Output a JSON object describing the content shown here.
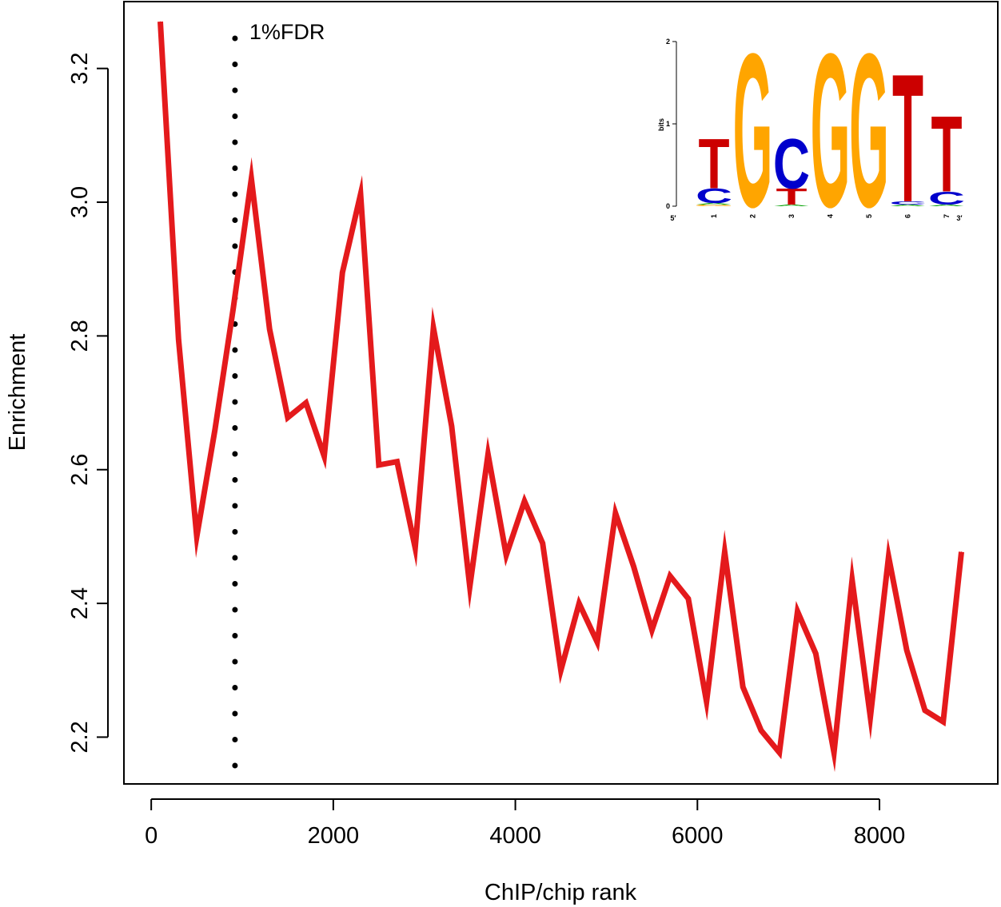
{
  "chart_data": {
    "type": "line",
    "xlabel": "ChIP/chip rank",
    "ylabel": "Enrichment",
    "xlim": [
      -300,
      9300
    ],
    "ylim": [
      2.13,
      3.3
    ],
    "xticks": [
      0,
      2000,
      4000,
      6000,
      8000
    ],
    "yticks": [
      2.2,
      2.4,
      2.6,
      2.8,
      3.0,
      3.2
    ],
    "xtick_labels": [
      "0",
      "2000",
      "4000",
      "6000",
      "8000"
    ],
    "ytick_labels": [
      "2.2",
      "2.4",
      "2.6",
      "2.8",
      "3.0",
      "3.2"
    ],
    "grid": false,
    "series": [
      {
        "color": "#e41a1c",
        "x": [
          100,
          300,
          500,
          700,
          900,
          1100,
          1300,
          1500,
          1700,
          1900,
          2100,
          2300,
          2500,
          2700,
          2900,
          3100,
          3300,
          3500,
          3700,
          3900,
          4100,
          4300,
          4500,
          4700,
          4900,
          5100,
          5300,
          5500,
          5700,
          5900,
          6100,
          6300,
          6500,
          6700,
          6900,
          7100,
          7300,
          7500,
          7700,
          7900,
          8100,
          8300,
          8500,
          8700,
          8900
        ],
        "y": [
          3.27,
          2.795,
          2.5,
          2.66,
          2.84,
          3.035,
          2.81,
          2.678,
          2.7,
          2.62,
          2.895,
          3.012,
          2.607,
          2.612,
          2.483,
          2.812,
          2.665,
          2.425,
          2.623,
          2.472,
          2.553,
          2.49,
          2.3,
          2.4,
          2.342,
          2.535,
          2.455,
          2.36,
          2.441,
          2.407,
          2.253,
          2.477,
          2.275,
          2.21,
          2.177,
          2.388,
          2.325,
          2.177,
          2.435,
          2.23,
          2.47,
          2.33,
          2.24,
          2.223,
          2.477
        ]
      }
    ],
    "annotations": [
      {
        "type": "vline",
        "x": 920,
        "style": "dotted",
        "label": "1%FDR"
      }
    ],
    "inset": {
      "type": "sequence-logo",
      "ylabel": "bits",
      "yticks": [
        "0",
        "1",
        "2"
      ],
      "positions": [
        "1",
        "2",
        "3",
        "4",
        "5",
        "6",
        "7"
      ],
      "end_labels": [
        "5′",
        "3′"
      ],
      "letters": [
        {
          "pos": 1,
          "stack": [
            {
              "l": "G",
              "bits": 0.02
            },
            {
              "l": "A",
              "bits": 0.02
            },
            {
              "l": "C",
              "bits": 0.18
            },
            {
              "l": "T",
              "bits": 0.62
            }
          ]
        },
        {
          "pos": 2,
          "stack": [
            {
              "l": "G",
              "bits": 1.92
            }
          ]
        },
        {
          "pos": 3,
          "stack": [
            {
              "l": "A",
              "bits": 0.02
            },
            {
              "l": "T",
              "bits": 0.2
            },
            {
              "l": "C",
              "bits": 0.62
            }
          ]
        },
        {
          "pos": 4,
          "stack": [
            {
              "l": "G",
              "bits": 1.92
            }
          ]
        },
        {
          "pos": 5,
          "stack": [
            {
              "l": "G",
              "bits": 1.92
            }
          ]
        },
        {
          "pos": 6,
          "stack": [
            {
              "l": "A",
              "bits": 0.02
            },
            {
              "l": "C",
              "bits": 0.04
            },
            {
              "l": "T",
              "bits": 1.6
            }
          ]
        },
        {
          "pos": 7,
          "stack": [
            {
              "l": "A",
              "bits": 0.02
            },
            {
              "l": "C",
              "bits": 0.16
            },
            {
              "l": "T",
              "bits": 0.95
            }
          ]
        }
      ],
      "colors": {
        "A": "#00a000",
        "C": "#0000cc",
        "G": "#ffa500",
        "T": "#cc0000"
      }
    }
  }
}
